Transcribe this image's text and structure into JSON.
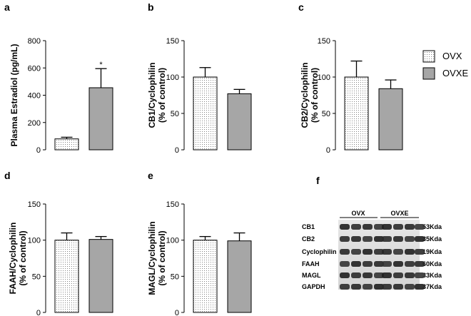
{
  "chart_data": [
    {
      "panel": "a",
      "type": "bar",
      "categories": [
        "OVX",
        "OVXE"
      ],
      "values": [
        80,
        455
      ],
      "errors": [
        12,
        140
      ],
      "ylabel": "Plasma Estradiol (pg/mL)",
      "ylim": [
        0,
        800
      ],
      "yticks": [
        "0",
        "200",
        "400",
        "600",
        "800"
      ],
      "annotations": [
        "",
        "*"
      ]
    },
    {
      "panel": "b",
      "type": "bar",
      "categories": [
        "OVX",
        "OVXE"
      ],
      "values": [
        100,
        77
      ],
      "errors": [
        13,
        6
      ],
      "ylabel": [
        "CB1/Cyclophilin",
        "(% of control)"
      ],
      "ylim": [
        0,
        150
      ],
      "yticks": [
        "0",
        "50",
        "100",
        "150"
      ]
    },
    {
      "panel": "c",
      "type": "bar",
      "categories": [
        "OVX",
        "OVXE"
      ],
      "values": [
        100,
        84
      ],
      "errors": [
        22,
        12
      ],
      "ylabel": [
        "CB2/Cyclophilin",
        "(% of control)"
      ],
      "ylim": [
        0,
        150
      ],
      "yticks": [
        "0",
        "50",
        "100",
        "150"
      ]
    },
    {
      "panel": "d",
      "type": "bar",
      "categories": [
        "OVX",
        "OVXE"
      ],
      "values": [
        100,
        101
      ],
      "errors": [
        10,
        4
      ],
      "ylabel": [
        "FAAH/Cyclophilin",
        "(% of control)"
      ],
      "ylim": [
        0,
        150
      ],
      "yticks": [
        "0",
        "50",
        "100",
        "150"
      ]
    },
    {
      "panel": "e",
      "type": "bar",
      "categories": [
        "OVX",
        "OVXE"
      ],
      "values": [
        100,
        99
      ],
      "errors": [
        5,
        11
      ],
      "ylabel": [
        "MAGL/Cyclophilin",
        "(% of control)"
      ],
      "ylim": [
        0,
        150
      ],
      "yticks": [
        "0",
        "50",
        "100",
        "150"
      ]
    }
  ],
  "legend": {
    "items": [
      {
        "label": "OVX",
        "pattern": "dotted",
        "color": "#ffffff"
      },
      {
        "label": "OVXE",
        "color": "#a6a6a6"
      }
    ]
  },
  "blot": {
    "panel": "f",
    "groups": [
      "OVX",
      "OVXE"
    ],
    "proteins": [
      "CB1",
      "CB2",
      "Cyclophilin",
      "FAAH",
      "MAGL",
      "GAPDH"
    ],
    "sizes": [
      "53Kda",
      "35Kda",
      "19Kda",
      "60Kda",
      "33Kda",
      "37Kda"
    ]
  },
  "colors": {
    "ovx_fill": "#ffffff",
    "ovxe_fill": "#a6a6a6",
    "axis": "#000000"
  }
}
